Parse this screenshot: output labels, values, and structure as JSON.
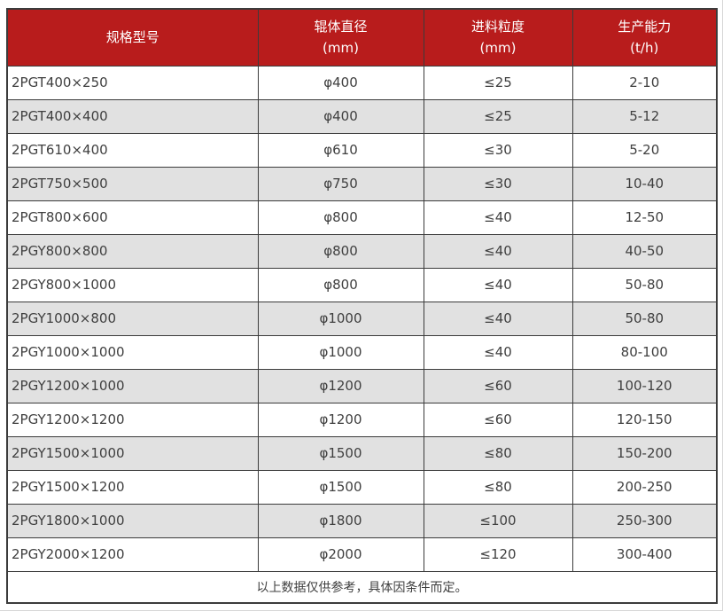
{
  "table": {
    "columns": [
      {
        "title": "规格型号",
        "unit": ""
      },
      {
        "title": "辊体直径",
        "unit": "(mm)"
      },
      {
        "title": "进料粒度",
        "unit": "(mm)"
      },
      {
        "title": "生产能力",
        "unit": "(t/h)"
      }
    ],
    "rows": [
      [
        "2PGT400×250",
        "φ400",
        "≤25",
        "2-10"
      ],
      [
        "2PGT400×400",
        "φ400",
        "≤25",
        "5-12"
      ],
      [
        "2PGT610×400",
        "φ610",
        "≤30",
        "5-20"
      ],
      [
        "2PGT750×500",
        "φ750",
        "≤30",
        "10-40"
      ],
      [
        "2PGT800×600",
        "φ800",
        "≤40",
        "12-50"
      ],
      [
        "2PGY800×800",
        "φ800",
        "≤40",
        "40-50"
      ],
      [
        "2PGY800×1000",
        "φ800",
        "≤40",
        "50-80"
      ],
      [
        "2PGY1000×800",
        "φ1000",
        "≤40",
        "50-80"
      ],
      [
        "2PGY1000×1000",
        "φ1000",
        "≤40",
        "80-100"
      ],
      [
        "2PGY1200×1000",
        "φ1200",
        "≤60",
        "100-120"
      ],
      [
        "2PGY1200×1200",
        "φ1200",
        "≤60",
        "120-150"
      ],
      [
        "2PGY1500×1000",
        "φ1500",
        "≤80",
        "150-200"
      ],
      [
        "2PGY1500×1200",
        "φ1500",
        "≤80",
        "200-250"
      ],
      [
        "2PGY1800×1000",
        "φ1800",
        "≤100",
        "250-300"
      ],
      [
        "2PGY2000×1200",
        "φ2000",
        "≤120",
        "300-400"
      ]
    ],
    "footer": "以上数据仅供参考，具体因条件而定。"
  },
  "colors": {
    "header_bg": "#B81C1C",
    "header_text": "#FFFFFF",
    "row_even_bg": "#E1E1E1",
    "row_odd_bg": "#FFFFFF",
    "text": "#3F3F3F",
    "border": "#3B3B3B",
    "page_edge": "#D8D8D8"
  }
}
